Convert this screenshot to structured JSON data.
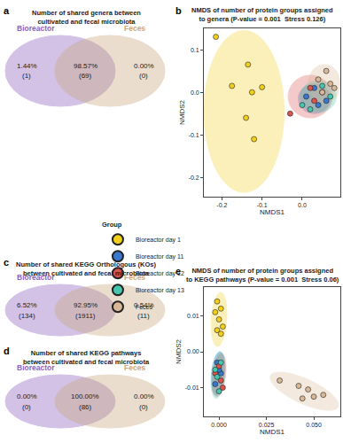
{
  "chart_data": [
    {
      "type": "venn",
      "label": "a",
      "title": [
        "Number of shared genera between",
        "cultivated and fecal microbiota"
      ],
      "sets": [
        {
          "name": "Bioreactor",
          "color": "#8e5fc0"
        },
        {
          "name": "Feces",
          "color": "#c9a77f"
        }
      ],
      "value_labels": [
        "1.44%",
        "98.57%",
        "0.00%"
      ],
      "count_labels": [
        "(1)",
        "(69)",
        "(0)"
      ]
    },
    {
      "type": "scatter",
      "label": "b",
      "title": [
        "NMDS of number of protein groups assigned",
        "to genera (P-value = 0.001  Stress 0.126)"
      ],
      "xlabel": "NMDS1",
      "ylabel": "NMDS2",
      "xlim": [
        -0.245,
        0.095
      ],
      "ylim": [
        -0.245,
        0.15
      ],
      "xticks": [
        -0.2,
        -0.1,
        {
          "value": 0,
          "label": "0.0"
        }
      ],
      "yticks": [
        -0.2,
        -0.1,
        {
          "value": 0,
          "label": "0.0"
        },
        0.1
      ],
      "grid": false,
      "legend": "bottom",
      "legend_title": "Group",
      "series": [
        {
          "name": "Bioreactor day 1",
          "color": "#f2cf1d",
          "x": [
            -0.215,
            -0.135,
            -0.175,
            -0.125,
            -0.1,
            -0.14,
            -0.12
          ],
          "y": [
            0.13,
            0.065,
            0.015,
            0.0,
            0.012,
            -0.06,
            -0.11
          ],
          "ellipse": {
            "center": [
              -0.145,
              -0.045
            ],
            "u": [
              0.1,
              0.0
            ],
            "v": [
              0.0,
              0.19
            ]
          }
        },
        {
          "name": "Bioreactor day 11",
          "color": "#3a78cf",
          "x": [
            0.01,
            0.04,
            0.03,
            0.06
          ],
          "y": [
            -0.01,
            -0.03,
            0.01,
            -0.02
          ],
          "ellipse": {
            "center": [
              0.03,
              -0.015
            ],
            "u": [
              0.04,
              0.0
            ],
            "v": [
              0.0,
              0.035
            ]
          }
        },
        {
          "name": "Bioreactor day 12",
          "color": "#d9534f",
          "x": [
            -0.03,
            0.02,
            0.05,
            0.03
          ],
          "y": [
            -0.05,
            0.01,
            0.0,
            -0.02
          ],
          "ellipse": {
            "center": [
              0.02,
              -0.01
            ],
            "u": [
              0.055,
              0.0
            ],
            "v": [
              0.0,
              0.05
            ]
          }
        },
        {
          "name": "Bioreactor day 13",
          "color": "#45c6ad",
          "x": [
            0.0,
            0.05,
            0.07,
            0.02
          ],
          "y": [
            -0.03,
            0.015,
            -0.01,
            -0.04
          ],
          "ellipse": {
            "center": [
              0.04,
              -0.01
            ],
            "u": [
              0.045,
              0.0
            ],
            "v": [
              0.0,
              0.037
            ]
          }
        },
        {
          "name": "Feces",
          "color": "#d8b896",
          "x": [
            0.06,
            0.04,
            0.07,
            0.05,
            0.08
          ],
          "y": [
            0.05,
            0.03,
            0.02,
            0.0,
            0.01
          ],
          "ellipse": {
            "center": [
              0.055,
              0.02
            ],
            "u": [
              0.04,
              0.0
            ],
            "v": [
              0.0,
              0.045
            ]
          }
        }
      ]
    },
    {
      "type": "venn",
      "label": "c",
      "title": [
        "Number of shared KEGG Orthologous (KOs)",
        "between cultivated and fecal microbiota"
      ],
      "sets": [
        {
          "name": "Bioreactor",
          "color": "#8e5fc0"
        },
        {
          "name": "Feces",
          "color": "#c9a77f"
        }
      ],
      "value_labels": [
        "6.52%",
        "92.95%",
        "0.54%"
      ],
      "count_labels": [
        "(134)",
        "(1911)",
        "(11)"
      ]
    },
    {
      "type": "venn",
      "label": "d",
      "title": [
        "Number of shared KEGG pathways",
        "between cultivated and fecal microbiota"
      ],
      "sets": [
        {
          "name": "Bioreactor",
          "color": "#8e5fc0"
        },
        {
          "name": "Feces",
          "color": "#c9a77f"
        }
      ],
      "value_labels": [
        "0.00%",
        "100.00%",
        "0.00%"
      ],
      "count_labels": [
        "(0)",
        "(86)",
        "(0)"
      ]
    },
    {
      "type": "scatter",
      "label": "e",
      "title": [
        "NMDS of number of protein groups assigned",
        "to KEGG pathways (P-value = 0.001  Stress 0.06)"
      ],
      "xlabel": "NMDS1",
      "ylabel": "NMDS2",
      "xlim": [
        -0.008,
        0.064
      ],
      "ylim": [
        -0.018,
        0.018
      ],
      "xticks": [
        {
          "value": 0,
          "label": "0.000"
        },
        0.025,
        {
          "value": 0.05,
          "label": "0.050"
        }
      ],
      "yticks": [
        -0.01,
        {
          "value": 0,
          "label": "0.00"
        },
        0.01
      ],
      "grid": false,
      "series": [
        {
          "name": "Bioreactor day 1",
          "color": "#f2cf1d",
          "x": [
            -0.001,
            0.001,
            -0.002,
            0.0,
            0.002,
            -0.001,
            0.001
          ],
          "y": [
            0.014,
            0.012,
            0.011,
            0.009,
            0.007,
            0.006,
            0.005
          ],
          "ellipse": {
            "center": [
              0.0,
              0.009
            ],
            "u": [
              0.0012,
              0.0075
            ],
            "v": [
              0.004,
              -0.0006
            ]
          }
        },
        {
          "name": "Bioreactor day 11",
          "color": "#3a78cf",
          "x": [
            -0.001,
            0.001,
            -0.002,
            0.0
          ],
          "y": [
            -0.003,
            -0.006,
            -0.009,
            -0.005
          ],
          "ellipse": {
            "center": [
              -0.0005,
              -0.006
            ],
            "u": [
              0.001,
              0.006
            ],
            "v": [
              0.0035,
              0.0
            ]
          }
        },
        {
          "name": "Bioreactor day 12",
          "color": "#d9534f",
          "x": [
            0.0,
            0.001,
            -0.002,
            0.002
          ],
          "y": [
            -0.004,
            -0.008,
            -0.006,
            -0.01
          ],
          "ellipse": {
            "center": [
              0.0,
              -0.0065
            ],
            "u": [
              0.0012,
              0.006
            ],
            "v": [
              0.0035,
              0.0
            ]
          }
        },
        {
          "name": "Bioreactor day 13",
          "color": "#45c6ad",
          "x": [
            -0.001,
            0.001,
            0.0,
            -0.002
          ],
          "y": [
            -0.007,
            -0.003,
            -0.011,
            -0.005
          ],
          "ellipse": {
            "center": [
              -0.0005,
              -0.0065
            ],
            "u": [
              0.001,
              0.0065
            ],
            "v": [
              0.0035,
              0.0
            ]
          }
        },
        {
          "name": "Feces",
          "color": "#d8b896",
          "x": [
            0.032,
            0.042,
            0.047,
            0.05,
            0.055,
            0.044
          ],
          "y": [
            -0.008,
            -0.0095,
            -0.0105,
            -0.0125,
            -0.012,
            -0.013
          ],
          "ellipse": {
            "center": [
              0.045,
              -0.011
            ],
            "u": [
              0.018,
              -0.004
            ],
            "v": [
              0.001,
              0.0035
            ]
          }
        }
      ]
    }
  ]
}
